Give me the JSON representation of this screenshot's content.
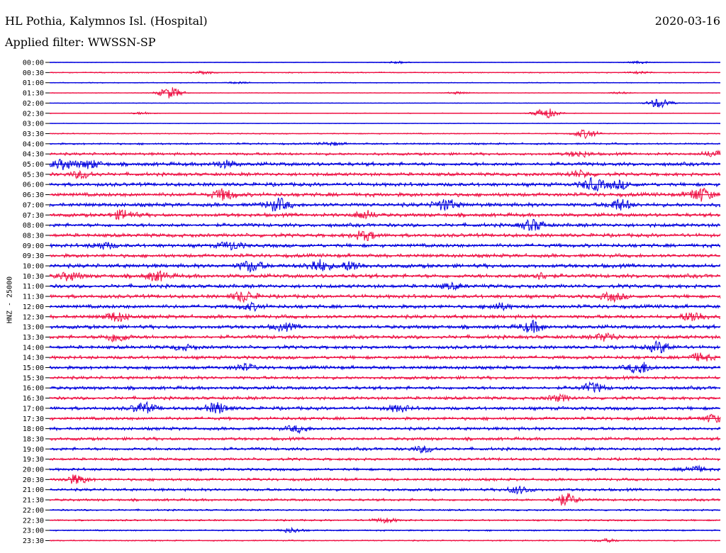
{
  "header": {
    "station": "HL Pothia, Kalymnos Isl. (Hospital)",
    "date": "2020-03-16",
    "filter": "Applied filter: WWSSN-SP"
  },
  "channel_label": "HNZ - 25000",
  "colors": {
    "even_trace": "#0000dd",
    "odd_trace": "#ee1144",
    "axis": "#000000"
  },
  "chart_data": {
    "type": "line",
    "title": "HL Pothia, Kalymnos Isl. (Hospital)",
    "subtitle": "Applied filter: WWSSN-SP",
    "ylabel": "HNZ - 25000",
    "rows": [
      {
        "time": "00:00",
        "level": 0.4,
        "events": [
          {
            "x": 0.52,
            "a": 1.8
          },
          {
            "x": 0.88,
            "a": 1.6
          }
        ]
      },
      {
        "time": "00:30",
        "level": 0.9,
        "events": [
          {
            "x": 0.23,
            "a": 1.5
          },
          {
            "x": 0.88,
            "a": 1.2
          }
        ]
      },
      {
        "time": "01:00",
        "level": 0.7,
        "events": [
          {
            "x": 0.28,
            "a": 1.2
          }
        ]
      },
      {
        "time": "01:30",
        "level": 0.5,
        "events": [
          {
            "x": 0.18,
            "a": 8
          },
          {
            "x": 0.61,
            "a": 1.5
          },
          {
            "x": 0.85,
            "a": 1.3
          }
        ]
      },
      {
        "time": "02:00",
        "level": 0.5,
        "events": [
          {
            "x": 0.91,
            "a": 7
          }
        ]
      },
      {
        "time": "02:30",
        "level": 0.6,
        "events": [
          {
            "x": 0.14,
            "a": 1.5
          },
          {
            "x": 0.74,
            "a": 7
          }
        ]
      },
      {
        "time": "03:00",
        "level": 0.5,
        "events": []
      },
      {
        "time": "03:30",
        "level": 0.9,
        "events": [
          {
            "x": 0.8,
            "a": 6
          }
        ]
      },
      {
        "time": "04:00",
        "level": 1.5,
        "events": [
          {
            "x": 0.42,
            "a": 2
          }
        ]
      },
      {
        "time": "04:30",
        "level": 2.2,
        "events": [
          {
            "x": 0.79,
            "a": 3.5
          },
          {
            "x": 0.99,
            "a": 4
          }
        ]
      },
      {
        "time": "05:00",
        "level": 3.0,
        "events": [
          {
            "x": 0.02,
            "a": 6
          },
          {
            "x": 0.06,
            "a": 5
          },
          {
            "x": 0.26,
            "a": 4
          }
        ]
      },
      {
        "time": "05:30",
        "level": 2.8,
        "events": [
          {
            "x": 0.05,
            "a": 5
          },
          {
            "x": 0.79,
            "a": 4
          }
        ]
      },
      {
        "time": "06:00",
        "level": 3.0,
        "events": [
          {
            "x": 0.81,
            "a": 8
          },
          {
            "x": 0.85,
            "a": 5
          }
        ]
      },
      {
        "time": "06:30",
        "level": 3.2,
        "events": [
          {
            "x": 0.26,
            "a": 7
          },
          {
            "x": 0.97,
            "a": 9
          }
        ]
      },
      {
        "time": "07:00",
        "level": 3.2,
        "events": [
          {
            "x": 0.34,
            "a": 8
          },
          {
            "x": 0.59,
            "a": 7
          },
          {
            "x": 0.85,
            "a": 7
          }
        ]
      },
      {
        "time": "07:30",
        "level": 3.0,
        "events": [
          {
            "x": 0.11,
            "a": 6
          },
          {
            "x": 0.47,
            "a": 5
          }
        ]
      },
      {
        "time": "08:00",
        "level": 3.0,
        "events": [
          {
            "x": 0.72,
            "a": 7
          }
        ]
      },
      {
        "time": "08:30",
        "level": 3.0,
        "events": [
          {
            "x": 0.47,
            "a": 6
          }
        ]
      },
      {
        "time": "09:00",
        "level": 3.0,
        "events": [
          {
            "x": 0.08,
            "a": 4
          },
          {
            "x": 0.27,
            "a": 5
          }
        ]
      },
      {
        "time": "09:30",
        "level": 3.0,
        "events": []
      },
      {
        "time": "10:00",
        "level": 3.2,
        "events": [
          {
            "x": 0.3,
            "a": 7
          },
          {
            "x": 0.4,
            "a": 8
          },
          {
            "x": 0.45,
            "a": 6
          }
        ]
      },
      {
        "time": "10:30",
        "level": 3.2,
        "events": [
          {
            "x": 0.03,
            "a": 5
          },
          {
            "x": 0.16,
            "a": 6
          },
          {
            "x": 0.73,
            "a": 4
          }
        ]
      },
      {
        "time": "11:00",
        "level": 3.0,
        "events": [
          {
            "x": 0.6,
            "a": 3
          }
        ]
      },
      {
        "time": "11:30",
        "level": 3.0,
        "events": [
          {
            "x": 0.29,
            "a": 7
          },
          {
            "x": 0.84,
            "a": 5
          }
        ]
      },
      {
        "time": "12:00",
        "level": 3.0,
        "events": [
          {
            "x": 0.3,
            "a": 4
          },
          {
            "x": 0.67,
            "a": 4
          }
        ]
      },
      {
        "time": "12:30",
        "level": 3.0,
        "events": [
          {
            "x": 0.1,
            "a": 6
          },
          {
            "x": 0.96,
            "a": 7
          }
        ]
      },
      {
        "time": "13:00",
        "level": 3.0,
        "events": [
          {
            "x": 0.35,
            "a": 4
          },
          {
            "x": 0.72,
            "a": 7
          }
        ]
      },
      {
        "time": "13:30",
        "level": 3.0,
        "events": [
          {
            "x": 0.1,
            "a": 6
          },
          {
            "x": 0.83,
            "a": 5
          }
        ]
      },
      {
        "time": "14:00",
        "level": 2.8,
        "events": [
          {
            "x": 0.91,
            "a": 7
          },
          {
            "x": 0.2,
            "a": 3
          }
        ]
      },
      {
        "time": "14:30",
        "level": 2.8,
        "events": [
          {
            "x": 0.97,
            "a": 5
          }
        ]
      },
      {
        "time": "15:00",
        "level": 2.8,
        "events": [
          {
            "x": 0.29,
            "a": 4
          },
          {
            "x": 0.88,
            "a": 8
          }
        ]
      },
      {
        "time": "15:30",
        "level": 2.6,
        "events": []
      },
      {
        "time": "16:00",
        "level": 2.8,
        "events": [
          {
            "x": 0.81,
            "a": 6
          }
        ]
      },
      {
        "time": "16:30",
        "level": 2.6,
        "events": [
          {
            "x": 0.76,
            "a": 4
          }
        ]
      },
      {
        "time": "17:00",
        "level": 2.8,
        "events": [
          {
            "x": 0.14,
            "a": 7
          },
          {
            "x": 0.25,
            "a": 7
          },
          {
            "x": 0.52,
            "a": 4
          }
        ]
      },
      {
        "time": "17:30",
        "level": 2.6,
        "events": [
          {
            "x": 0.99,
            "a": 5
          }
        ]
      },
      {
        "time": "18:00",
        "level": 2.6,
        "events": [
          {
            "x": 0.37,
            "a": 4
          }
        ]
      },
      {
        "time": "18:30",
        "level": 2.5,
        "events": []
      },
      {
        "time": "19:00",
        "level": 2.5,
        "events": [
          {
            "x": 0.56,
            "a": 4
          }
        ]
      },
      {
        "time": "19:30",
        "level": 2.2,
        "events": []
      },
      {
        "time": "20:00",
        "level": 2.2,
        "events": [
          {
            "x": 0.96,
            "a": 4
          }
        ]
      },
      {
        "time": "20:30",
        "level": 2.2,
        "events": [
          {
            "x": 0.04,
            "a": 6
          }
        ]
      },
      {
        "time": "21:00",
        "level": 2.2,
        "events": [
          {
            "x": 0.7,
            "a": 5
          }
        ]
      },
      {
        "time": "21:30",
        "level": 2.0,
        "events": [
          {
            "x": 0.77,
            "a": 8
          }
        ]
      },
      {
        "time": "22:00",
        "level": 1.4,
        "events": []
      },
      {
        "time": "22:30",
        "level": 1.4,
        "events": [
          {
            "x": 0.5,
            "a": 3
          }
        ]
      },
      {
        "time": "23:00",
        "level": 1.2,
        "events": [
          {
            "x": 0.36,
            "a": 3
          }
        ]
      },
      {
        "time": "23:30",
        "level": 1.0,
        "events": [
          {
            "x": 0.83,
            "a": 2
          }
        ]
      }
    ]
  }
}
